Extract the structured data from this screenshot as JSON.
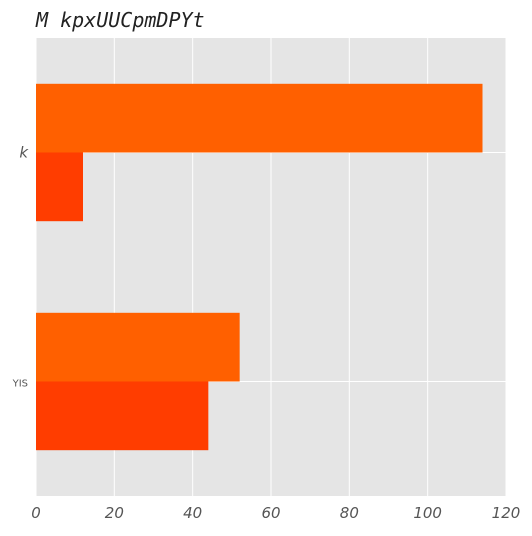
{
  "chart_data": {
    "type": "bar",
    "orientation": "horizontal",
    "title": "M kpxUUCpmDPYt",
    "xlabel": "",
    "ylabel": "",
    "categories": [
      "k",
      "YIS"
    ],
    "series": [
      {
        "values": [
          114,
          52
        ],
        "color": "#ff6000"
      },
      {
        "values": [
          12,
          44
        ],
        "color": "#ff3d00"
      }
    ],
    "xlim": [
      0,
      120
    ],
    "xticks": [
      0,
      20,
      40,
      60,
      80,
      100,
      120
    ],
    "grid": true,
    "legend": "none"
  },
  "colors": {
    "plot_background": "#e5e5e5",
    "grid": "#ffffff",
    "tick_text": "#555555"
  }
}
